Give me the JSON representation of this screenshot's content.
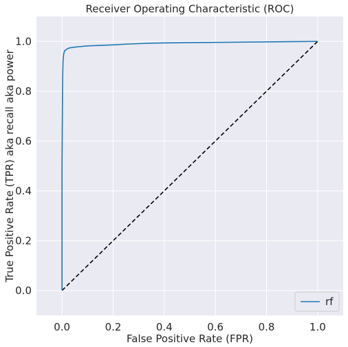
{
  "chart_data": {
    "type": "line",
    "title": "Receiver Operating Characteristic (ROC)",
    "xlabel": "False Positive Rate (FPR)",
    "ylabel": "True Positive Rate (TPR) aka recall aka power",
    "xlim": [
      -0.1,
      1.1
    ],
    "ylim": [
      -0.1,
      1.1
    ],
    "xticks": [
      0.0,
      0.2,
      0.4,
      0.6,
      0.8,
      1.0
    ],
    "yticks": [
      0.0,
      0.2,
      0.4,
      0.6,
      0.8,
      1.0
    ],
    "xtick_labels": [
      "0.0",
      "0.2",
      "0.4",
      "0.6",
      "0.8",
      "1.0"
    ],
    "ytick_labels": [
      "0.0",
      "0.2",
      "0.4",
      "0.6",
      "0.8",
      "1.0"
    ],
    "grid": true,
    "legend_position": "lower-right",
    "series": [
      {
        "name": "rf",
        "color": "#1f77b4",
        "style": "solid",
        "x": [
          0.0,
          0.0,
          0.002,
          0.003,
          0.004,
          0.006,
          0.008,
          0.01,
          0.015,
          0.02,
          0.03,
          0.05,
          0.08,
          0.1,
          0.15,
          0.2,
          0.25,
          0.3,
          0.35,
          0.4,
          0.5,
          0.6,
          0.7,
          0.8,
          0.9,
          1.0
        ],
        "y": [
          0.0,
          0.5,
          0.8,
          0.88,
          0.92,
          0.945,
          0.955,
          0.962,
          0.966,
          0.97,
          0.974,
          0.977,
          0.98,
          0.982,
          0.984,
          0.986,
          0.989,
          0.991,
          0.993,
          0.994,
          0.995,
          0.996,
          0.997,
          0.998,
          0.999,
          1.0
        ]
      },
      {
        "name": "",
        "color": "#000000",
        "style": "dashed",
        "x": [
          0.0,
          1.0
        ],
        "y": [
          0.0,
          1.0
        ]
      }
    ],
    "legend": [
      {
        "label": "rf",
        "color": "#1f77b4"
      }
    ],
    "colors": {
      "plot_background": "#eaeaf2",
      "grid": "#ffffff",
      "text": "#262626"
    }
  }
}
